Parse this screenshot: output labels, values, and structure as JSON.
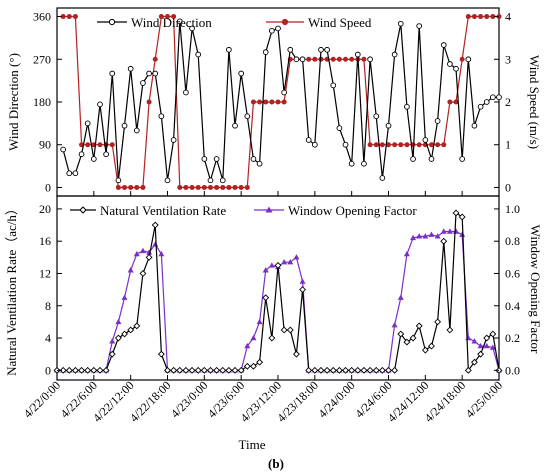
{
  "chart_data": [
    {
      "type": "line",
      "panel": "top",
      "ylabel": "Wind Direction (°)",
      "y2label": "Wind Speed (m/s)",
      "ylim": [
        -18,
        378
      ],
      "y2lim": [
        -0.2,
        4.2
      ],
      "yticks": [
        0,
        90,
        180,
        270,
        360
      ],
      "y2ticks": [
        0,
        1,
        2,
        3,
        4
      ],
      "legend_placement": "top",
      "series": [
        {
          "name": "Wind Direction",
          "axis": "left",
          "color": "#000000",
          "marker": "open-circle",
          "x": [
            1,
            2,
            3,
            4,
            5,
            6,
            7,
            8,
            9,
            10,
            11,
            12,
            13,
            14,
            15,
            16,
            17,
            18,
            19,
            20,
            21,
            22,
            23,
            24,
            25,
            26,
            27,
            28,
            29,
            30,
            31,
            32,
            33,
            34,
            35,
            36,
            37,
            38,
            39,
            40,
            41,
            42,
            43,
            44,
            45,
            46,
            47,
            48,
            49,
            50,
            51,
            52,
            53,
            54,
            55,
            56,
            57,
            58,
            59,
            60,
            61,
            62,
            63,
            64,
            65,
            66,
            67,
            68,
            69,
            70,
            71,
            72
          ],
          "values": [
            80,
            30,
            30,
            70,
            135,
            60,
            175,
            70,
            240,
            15,
            130,
            250,
            120,
            220,
            240,
            240,
            150,
            15,
            100,
            350,
            200,
            335,
            280,
            60,
            15,
            60,
            15,
            290,
            130,
            240,
            150,
            60,
            50,
            285,
            330,
            335,
            200,
            290,
            270,
            270,
            100,
            90,
            290,
            290,
            215,
            125,
            90,
            50,
            280,
            50,
            270,
            150,
            20,
            130,
            280,
            345,
            170,
            60,
            340,
            100,
            60,
            140,
            300,
            260,
            250,
            60,
            270,
            130,
            170,
            180,
            190,
            190
          ]
        },
        {
          "name": "Wind Speed",
          "axis": "right",
          "color": "#b22222",
          "marker": "filled-circle",
          "x": [
            1,
            2,
            3,
            4,
            5,
            6,
            7,
            8,
            9,
            10,
            11,
            12,
            13,
            14,
            15,
            16,
            17,
            18,
            19,
            20,
            21,
            22,
            23,
            24,
            25,
            26,
            27,
            28,
            29,
            30,
            31,
            32,
            33,
            34,
            35,
            36,
            37,
            38,
            39,
            40,
            41,
            42,
            43,
            44,
            45,
            46,
            47,
            48,
            49,
            50,
            51,
            52,
            53,
            54,
            55,
            56,
            57,
            58,
            59,
            60,
            61,
            62,
            63,
            64,
            65,
            66,
            67,
            68,
            69,
            70,
            71,
            72
          ],
          "values": [
            4,
            4,
            4,
            1,
            1,
            1,
            1,
            1,
            1,
            0,
            0,
            0,
            0,
            0,
            2,
            3,
            4,
            4,
            4,
            0,
            0,
            0,
            0,
            0,
            0,
            0,
            0,
            0,
            0,
            0,
            0,
            2,
            2,
            2,
            2,
            2,
            2,
            3,
            3,
            3,
            3,
            3,
            3,
            3,
            3,
            3,
            3,
            3,
            3,
            3,
            1,
            1,
            1,
            1,
            1,
            1,
            1,
            1,
            1,
            1,
            1,
            1,
            1,
            2,
            2,
            3,
            4,
            4,
            4,
            4,
            4,
            4
          ]
        }
      ]
    },
    {
      "type": "line",
      "panel": "bottom",
      "xlabel": "Time",
      "ylabel": "Natural Ventilation Rate（ac/h）",
      "y2label": "Window Opening Factor",
      "ylim": [
        -1.2,
        21.6
      ],
      "y2lim": [
        -0.06,
        1.08
      ],
      "yticks": [
        0,
        4,
        8,
        12,
        16,
        20
      ],
      "y2ticks": [
        0.0,
        0.2,
        0.4,
        0.6,
        0.8,
        1.0
      ],
      "xlim": [
        0,
        72
      ],
      "xtick_positions": [
        0,
        6,
        12,
        18,
        24,
        30,
        36,
        42,
        48,
        54,
        60,
        66,
        72
      ],
      "xtick_labels": [
        "4/22/0:00",
        "4/22/6:00",
        "4/22/12:00",
        "4/22/18:00",
        "4/23/0:00",
        "4/23/6:00",
        "4/23/12:00",
        "4/23/18:00",
        "4/24/0:00",
        "4/24/6:00",
        "4/24/12:00",
        "4/24/18:00",
        "4/25/0:00"
      ],
      "legend_placement": "top",
      "series": [
        {
          "name": "Natural Ventilation Rate",
          "axis": "left",
          "color": "#000000",
          "marker": "open-diamond",
          "x": [
            0,
            1,
            2,
            3,
            4,
            5,
            6,
            7,
            8,
            9,
            10,
            11,
            12,
            13,
            14,
            15,
            16,
            17,
            18,
            19,
            20,
            21,
            22,
            23,
            24,
            25,
            26,
            27,
            28,
            29,
            30,
            31,
            32,
            33,
            34,
            35,
            36,
            37,
            38,
            39,
            40,
            41,
            42,
            43,
            44,
            45,
            46,
            47,
            48,
            49,
            50,
            51,
            52,
            53,
            54,
            55,
            56,
            57,
            58,
            59,
            60,
            61,
            62,
            63,
            64,
            65,
            66,
            67,
            68,
            69,
            70,
            71,
            72
          ],
          "values": [
            0,
            0,
            0,
            0,
            0,
            0,
            0,
            0,
            0,
            2,
            4,
            4.5,
            5,
            5.5,
            12,
            14,
            18,
            2,
            0,
            0,
            0,
            0,
            0,
            0,
            0,
            0,
            0,
            0,
            0,
            0,
            0,
            0.5,
            0.5,
            1,
            9,
            4,
            13,
            5,
            5,
            2,
            10,
            0,
            0,
            0,
            0,
            0,
            0,
            0,
            0,
            0,
            0,
            0,
            0,
            0,
            0,
            0,
            4.5,
            3.5,
            4,
            5.5,
            2.5,
            3,
            6,
            16,
            5,
            19.5,
            19,
            0,
            1,
            2,
            4,
            4.5,
            0
          ]
        },
        {
          "name": "Window Opening Factor",
          "axis": "right",
          "color": "#7b2fc9",
          "marker": "filled-triangle",
          "x": [
            0,
            1,
            2,
            3,
            4,
            5,
            6,
            7,
            8,
            9,
            10,
            11,
            12,
            13,
            14,
            15,
            16,
            17,
            18,
            19,
            20,
            21,
            22,
            23,
            24,
            25,
            26,
            27,
            28,
            29,
            30,
            31,
            32,
            33,
            34,
            35,
            36,
            37,
            38,
            39,
            40,
            41,
            42,
            43,
            44,
            45,
            46,
            47,
            48,
            49,
            50,
            51,
            52,
            53,
            54,
            55,
            56,
            57,
            58,
            59,
            60,
            61,
            62,
            63,
            64,
            65,
            66,
            67,
            68,
            69,
            70,
            71,
            72
          ],
          "values": [
            0,
            0,
            0,
            0,
            0,
            0,
            0,
            0,
            0,
            0.18,
            0.3,
            0.45,
            0.62,
            0.72,
            0.74,
            0.73,
            0.78,
            0.72,
            0,
            0,
            0,
            0,
            0,
            0,
            0,
            0,
            0,
            0,
            0,
            0,
            0,
            0.15,
            0.2,
            0.3,
            0.62,
            0.65,
            0.64,
            0.67,
            0.67,
            0.7,
            0.55,
            0,
            0,
            0,
            0,
            0,
            0,
            0,
            0,
            0,
            0,
            0,
            0,
            0,
            0,
            0.28,
            0.45,
            0.72,
            0.82,
            0.83,
            0.83,
            0.84,
            0.83,
            0.86,
            0.86,
            0.86,
            0.84,
            0.2,
            0.18,
            0.15,
            0.15,
            0.14,
            0
          ]
        }
      ]
    }
  ],
  "caption": "(b)",
  "colors": {
    "wind_speed": "#b22222",
    "window_factor": "#7b2fc9",
    "black": "#000000"
  }
}
